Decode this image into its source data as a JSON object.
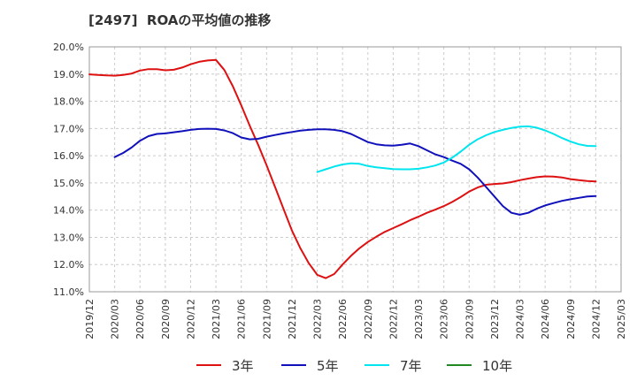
{
  "chart_data": {
    "type": "line",
    "title": "[2497]  ROAの平均値の推移",
    "xlabel": "",
    "ylabel": "",
    "ylim": [
      11.0,
      20.0
    ],
    "y_ticks": [
      "11.0%",
      "12.0%",
      "13.0%",
      "14.0%",
      "15.0%",
      "16.0%",
      "17.0%",
      "18.0%",
      "19.0%",
      "20.0%"
    ],
    "x_ticks": [
      "2019/12",
      "2020/03",
      "2020/06",
      "2020/09",
      "2020/12",
      "2021/03",
      "2021/06",
      "2021/09",
      "2021/12",
      "2022/03",
      "2022/06",
      "2022/09",
      "2022/12",
      "2023/03",
      "2023/06",
      "2023/09",
      "2023/12",
      "2024/03",
      "2024/06",
      "2024/09",
      "2024/12",
      "2025/03"
    ],
    "grid": true,
    "legend_position": "bottom",
    "series": [
      {
        "name": "3年",
        "color": "#dd1111",
        "x": [
          "2019/12",
          "2020/01",
          "2020/02",
          "2020/03",
          "2020/04",
          "2020/05",
          "2020/06",
          "2020/07",
          "2020/08",
          "2020/09",
          "2020/10",
          "2020/11",
          "2020/12",
          "2021/01",
          "2021/02",
          "2021/03",
          "2021/04",
          "2021/05",
          "2021/06",
          "2021/07",
          "2021/08",
          "2021/09",
          "2021/10",
          "2021/11",
          "2021/12",
          "2022/01",
          "2022/02",
          "2022/03",
          "2022/04",
          "2022/05",
          "2022/06",
          "2022/07",
          "2022/08",
          "2022/09",
          "2022/10",
          "2022/11",
          "2022/12",
          "2023/01",
          "2023/02",
          "2023/03",
          "2023/04",
          "2023/05",
          "2023/06",
          "2023/07",
          "2023/08",
          "2023/09",
          "2023/10",
          "2023/11",
          "2023/12",
          "2024/01",
          "2024/02",
          "2024/03",
          "2024/04",
          "2024/05",
          "2024/06",
          "2024/07",
          "2024/08",
          "2024/09",
          "2024/10",
          "2024/11",
          "2024/12"
        ],
        "values": [
          18.99,
          18.97,
          18.95,
          18.94,
          18.97,
          19.02,
          19.13,
          19.18,
          19.18,
          19.14,
          19.16,
          19.24,
          19.36,
          19.45,
          19.5,
          19.52,
          19.15,
          18.55,
          17.85,
          17.1,
          16.4,
          15.65,
          14.85,
          14.05,
          13.25,
          12.6,
          12.05,
          11.62,
          11.5,
          11.65,
          12.0,
          12.32,
          12.6,
          12.83,
          13.02,
          13.2,
          13.34,
          13.48,
          13.63,
          13.76,
          13.9,
          14.02,
          14.15,
          14.3,
          14.48,
          14.68,
          14.83,
          14.93,
          14.96,
          14.98,
          15.03,
          15.1,
          15.16,
          15.21,
          15.24,
          15.23,
          15.2,
          15.14,
          15.1,
          15.07,
          15.05
        ]
      },
      {
        "name": "5年",
        "color": "#1111bb",
        "x": [
          "2020/03",
          "2020/04",
          "2020/05",
          "2020/06",
          "2020/07",
          "2020/08",
          "2020/09",
          "2020/10",
          "2020/11",
          "2020/12",
          "2021/01",
          "2021/02",
          "2021/03",
          "2021/04",
          "2021/05",
          "2021/06",
          "2021/07",
          "2021/08",
          "2021/09",
          "2021/10",
          "2021/11",
          "2021/12",
          "2022/01",
          "2022/02",
          "2022/03",
          "2022/04",
          "2022/05",
          "2022/06",
          "2022/07",
          "2022/08",
          "2022/09",
          "2022/10",
          "2022/11",
          "2022/12",
          "2023/01",
          "2023/02",
          "2023/03",
          "2023/04",
          "2023/05",
          "2023/06",
          "2023/07",
          "2023/08",
          "2023/09",
          "2023/10",
          "2023/11",
          "2023/12",
          "2024/01",
          "2024/02",
          "2024/03",
          "2024/04",
          "2024/05",
          "2024/06",
          "2024/07",
          "2024/08",
          "2024/09",
          "2024/10",
          "2024/11",
          "2024/12"
        ],
        "values": [
          15.95,
          16.1,
          16.3,
          16.55,
          16.72,
          16.8,
          16.82,
          16.86,
          16.9,
          16.95,
          16.98,
          16.99,
          16.98,
          16.93,
          16.83,
          16.67,
          16.6,
          16.62,
          16.7,
          16.76,
          16.82,
          16.87,
          16.92,
          16.95,
          16.97,
          16.97,
          16.95,
          16.9,
          16.8,
          16.65,
          16.5,
          16.42,
          16.38,
          16.37,
          16.4,
          16.45,
          16.35,
          16.2,
          16.05,
          15.95,
          15.82,
          15.7,
          15.5,
          15.2,
          14.85,
          14.5,
          14.15,
          13.9,
          13.83,
          13.9,
          14.05,
          14.17,
          14.26,
          14.34,
          14.4,
          14.45,
          14.5,
          14.52
        ]
      },
      {
        "name": "7年",
        "color": "#00e5ee",
        "x": [
          "2022/03",
          "2022/04",
          "2022/05",
          "2022/06",
          "2022/07",
          "2022/08",
          "2022/09",
          "2022/10",
          "2022/11",
          "2022/12",
          "2023/01",
          "2023/02",
          "2023/03",
          "2023/04",
          "2023/05",
          "2023/06",
          "2023/07",
          "2023/08",
          "2023/09",
          "2023/10",
          "2023/11",
          "2023/12",
          "2024/01",
          "2024/02",
          "2024/03",
          "2024/04",
          "2024/05",
          "2024/06",
          "2024/07",
          "2024/08",
          "2024/09",
          "2024/10",
          "2024/11",
          "2024/12"
        ],
        "values": [
          15.4,
          15.5,
          15.6,
          15.68,
          15.72,
          15.7,
          15.62,
          15.57,
          15.54,
          15.51,
          15.5,
          15.5,
          15.52,
          15.57,
          15.64,
          15.75,
          15.93,
          16.15,
          16.4,
          16.6,
          16.75,
          16.87,
          16.95,
          17.02,
          17.07,
          17.08,
          17.03,
          16.93,
          16.8,
          16.65,
          16.52,
          16.42,
          16.36,
          16.35
        ]
      },
      {
        "name": "10年",
        "color": "#228822",
        "x": [],
        "values": []
      }
    ]
  }
}
